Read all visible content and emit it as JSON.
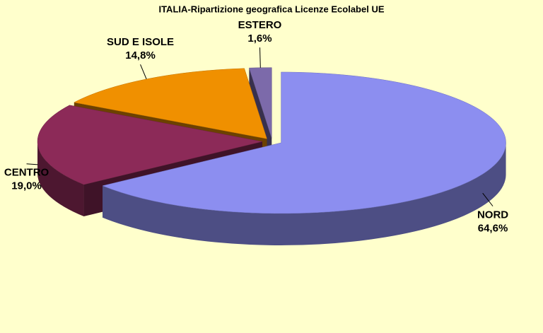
{
  "chart_data": {
    "type": "pie3d",
    "title": "ITALIA-Ripartizione geografica Licenze Ecolabel UE",
    "categories": [
      "NORD",
      "CENTRO",
      "SUD E ISOLE",
      "ESTERO"
    ],
    "values": [
      64.6,
      19.0,
      14.8,
      1.6
    ],
    "value_labels": [
      "64,6%",
      "19,0%",
      "14,8%",
      "1,6%"
    ],
    "colors": [
      "#8c8ef0",
      "#8c2a58",
      "#f09000",
      "#7c6aaa"
    ]
  }
}
